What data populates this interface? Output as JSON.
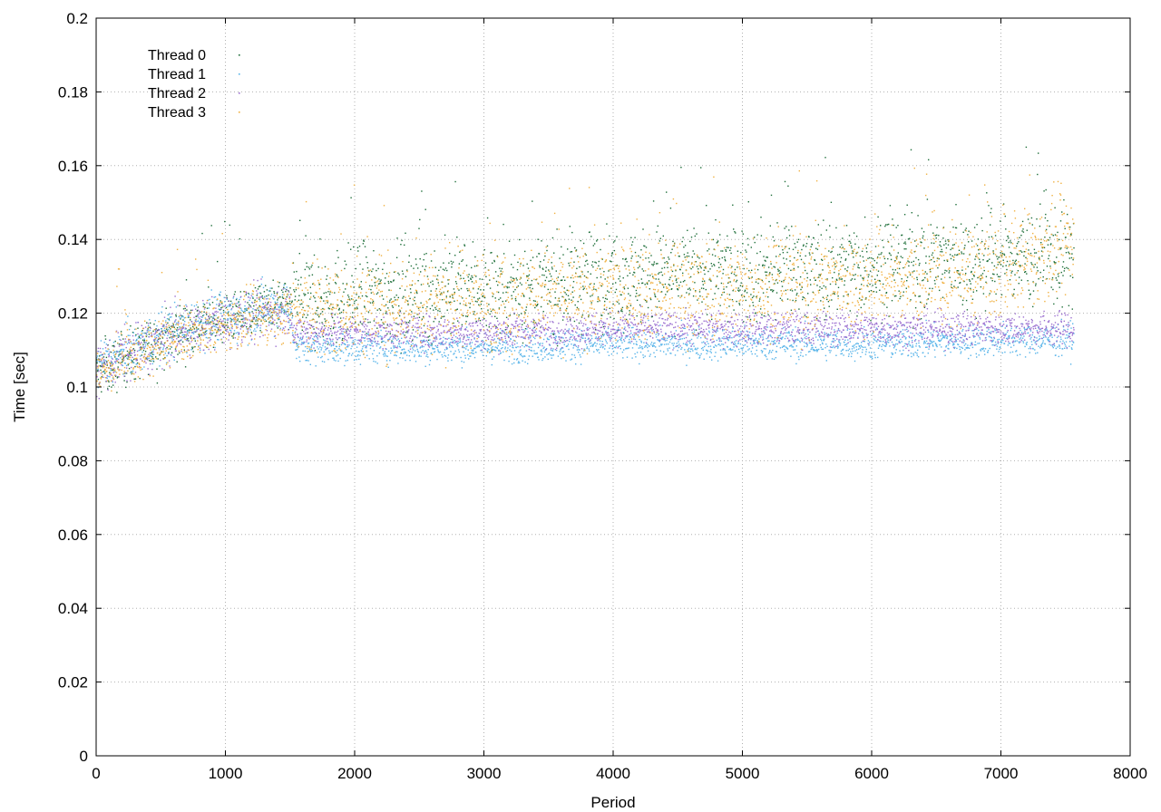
{
  "chart_data": {
    "type": "scatter",
    "title": "",
    "xlabel": "Period",
    "ylabel": "Time [sec]",
    "xlim": [
      0,
      8000
    ],
    "ylim": [
      0,
      0.2
    ],
    "x_ticks": [
      "0",
      "1000",
      "2000",
      "3000",
      "4000",
      "5000",
      "6000",
      "7000",
      "8000"
    ],
    "y_ticks": [
      "0",
      "0.02",
      "0.04",
      "0.06",
      "0.08",
      "0.1",
      "0.12",
      "0.14",
      "0.16",
      "0.18",
      "0.2"
    ],
    "grid": true,
    "legend_position": "top-left",
    "x_max_period": 7560,
    "series": [
      {
        "name": "Thread 0",
        "color": "#1f6f3a",
        "points": [
          [
            0,
            0.104
          ],
          [
            250,
            0.108
          ],
          [
            500,
            0.113
          ],
          [
            750,
            0.117
          ],
          [
            1000,
            0.119
          ],
          [
            1250,
            0.121
          ],
          [
            1500,
            0.123
          ],
          [
            2000,
            0.125
          ],
          [
            2500,
            0.126
          ],
          [
            3000,
            0.127
          ],
          [
            3500,
            0.128
          ],
          [
            4000,
            0.13
          ],
          [
            4500,
            0.131
          ],
          [
            5000,
            0.131
          ],
          [
            5500,
            0.132
          ],
          [
            6000,
            0.133
          ],
          [
            6500,
            0.134
          ],
          [
            7000,
            0.135
          ],
          [
            7560,
            0.136
          ]
        ]
      },
      {
        "name": "Thread 1",
        "color": "#57b4e9",
        "points": [
          [
            0,
            0.106
          ],
          [
            250,
            0.11
          ],
          [
            500,
            0.114
          ],
          [
            750,
            0.117
          ],
          [
            1000,
            0.119
          ],
          [
            1250,
            0.121
          ],
          [
            1500,
            0.122
          ],
          [
            1530,
            0.111
          ],
          [
            2000,
            0.111
          ],
          [
            3000,
            0.111
          ],
          [
            4000,
            0.112
          ],
          [
            5000,
            0.112
          ],
          [
            6000,
            0.112
          ],
          [
            7000,
            0.113
          ],
          [
            7560,
            0.113
          ]
        ]
      },
      {
        "name": "Thread 2",
        "color": "#9b6fd0",
        "points": [
          [
            0,
            0.105
          ],
          [
            250,
            0.109
          ],
          [
            500,
            0.113
          ],
          [
            750,
            0.116
          ],
          [
            1000,
            0.118
          ],
          [
            1250,
            0.12
          ],
          [
            1500,
            0.121
          ],
          [
            1530,
            0.115
          ],
          [
            2000,
            0.115
          ],
          [
            3000,
            0.115
          ],
          [
            4000,
            0.116
          ],
          [
            5000,
            0.116
          ],
          [
            6000,
            0.116
          ],
          [
            7000,
            0.116
          ],
          [
            7560,
            0.116
          ]
        ]
      },
      {
        "name": "Thread 3",
        "color": "#f0b040",
        "points": [
          [
            0,
            0.104
          ],
          [
            250,
            0.108
          ],
          [
            500,
            0.112
          ],
          [
            750,
            0.115
          ],
          [
            1000,
            0.117
          ],
          [
            1250,
            0.119
          ],
          [
            1500,
            0.12
          ],
          [
            2000,
            0.122
          ],
          [
            2500,
            0.123
          ],
          [
            3000,
            0.124
          ],
          [
            3500,
            0.125
          ],
          [
            4000,
            0.126
          ],
          [
            4500,
            0.127
          ],
          [
            5000,
            0.127
          ],
          [
            5500,
            0.128
          ],
          [
            6000,
            0.129
          ],
          [
            6500,
            0.13
          ],
          [
            7000,
            0.132
          ],
          [
            7560,
            0.14
          ]
        ]
      }
    ]
  }
}
